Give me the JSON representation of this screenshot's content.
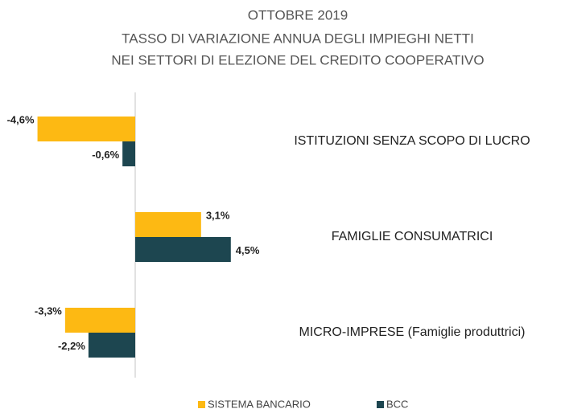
{
  "chart_data": {
    "type": "barh",
    "title": [
      "OTTOBRE 2019",
      "TASSO DI VARIAZIONE ANNUA DEGLI IMPIEGHI NETTI",
      "NEI SETTORI DI ELEZIONE DEL CREDITO COOPERATIVO"
    ],
    "categories": [
      "ISTITUZIONI SENZA SCOPO DI LUCRO",
      "FAMIGLIE CONSUMATRICI",
      "MICRO-IMPRESE (Famiglie produttrici)"
    ],
    "series": [
      {
        "name": "SISTEMA BANCARIO",
        "color": "#fdb913",
        "values": [
          -4.6,
          3.1,
          -3.3
        ],
        "value_labels": [
          "-4,6%",
          "3,1%",
          "-3,3%"
        ]
      },
      {
        "name": "BCC",
        "color": "#1d4650",
        "values": [
          -0.6,
          4.5,
          -2.2
        ],
        "value_labels": [
          "-0,6%",
          "4,5%",
          "-2,2%"
        ]
      }
    ],
    "xlim": [
      -5,
      5
    ]
  }
}
